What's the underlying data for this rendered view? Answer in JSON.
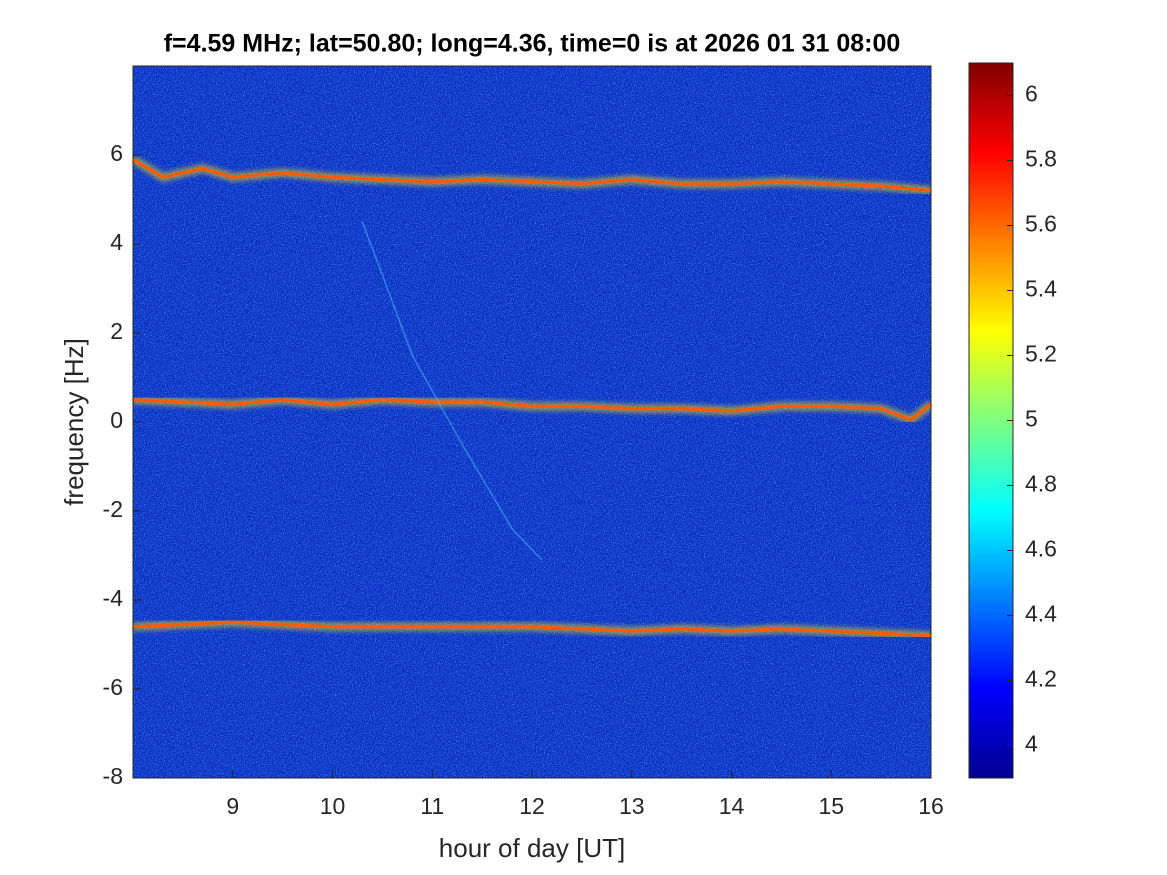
{
  "chart_data": {
    "type": "spectrogram",
    "title": "f=4.59 MHz;  lat=50.80; long=4.36, time=0 is at 2026 01 31 08:00",
    "x_label": "hour of day [UT]",
    "y_label": "frequency [Hz]",
    "xlim": [
      8,
      16
    ],
    "xticks": [
      9,
      10,
      11,
      12,
      13,
      14,
      15,
      16
    ],
    "ylim": [
      -8,
      8
    ],
    "yticks": [
      -8,
      -6,
      -4,
      -2,
      0,
      2,
      4,
      6
    ],
    "clim": [
      3.9,
      6.1
    ],
    "cticks": [
      4,
      4.2,
      4.4,
      4.6,
      4.8,
      5,
      5.2,
      5.4,
      5.6,
      5.8,
      6
    ],
    "background_color": "#0b2ec4",
    "series": [
      {
        "color": "#ff5a00",
        "x": [
          8,
          8.3,
          8.7,
          9,
          9.5,
          10,
          10.5,
          11,
          11.5,
          12,
          12.5,
          13,
          13.5,
          14,
          14.5,
          15,
          15.5,
          16
        ],
        "values": [
          5.9,
          5.5,
          5.7,
          5.5,
          5.6,
          5.5,
          5.45,
          5.4,
          5.45,
          5.4,
          5.35,
          5.45,
          5.35,
          5.35,
          5.4,
          5.35,
          5.3,
          5.2
        ]
      },
      {
        "color": "#ff5a00",
        "x": [
          8,
          8.5,
          9,
          9.5,
          10,
          10.5,
          11,
          11.5,
          12,
          12.5,
          13,
          13.5,
          14,
          14.5,
          15,
          15.5,
          15.8,
          16
        ],
        "values": [
          0.5,
          0.45,
          0.4,
          0.5,
          0.4,
          0.5,
          0.45,
          0.45,
          0.35,
          0.35,
          0.3,
          0.3,
          0.25,
          0.35,
          0.35,
          0.3,
          0.05,
          0.4
        ]
      },
      {
        "color": "#ff5a00",
        "x": [
          8,
          8.5,
          9,
          9.5,
          10,
          10.5,
          11,
          11.5,
          12,
          12.5,
          13,
          13.5,
          14,
          14.5,
          15,
          15.5,
          16
        ],
        "values": [
          -4.6,
          -4.55,
          -4.5,
          -4.55,
          -4.6,
          -4.6,
          -4.6,
          -4.6,
          -4.6,
          -4.65,
          -4.7,
          -4.65,
          -4.7,
          -4.65,
          -4.7,
          -4.75,
          -4.8
        ]
      },
      {
        "color": "#4fd0ff",
        "x": [
          10.3,
          10.8,
          11.3,
          11.8,
          12.1
        ],
        "values": [
          4.5,
          1.5,
          -0.5,
          -2.4,
          -3.1
        ]
      }
    ]
  }
}
